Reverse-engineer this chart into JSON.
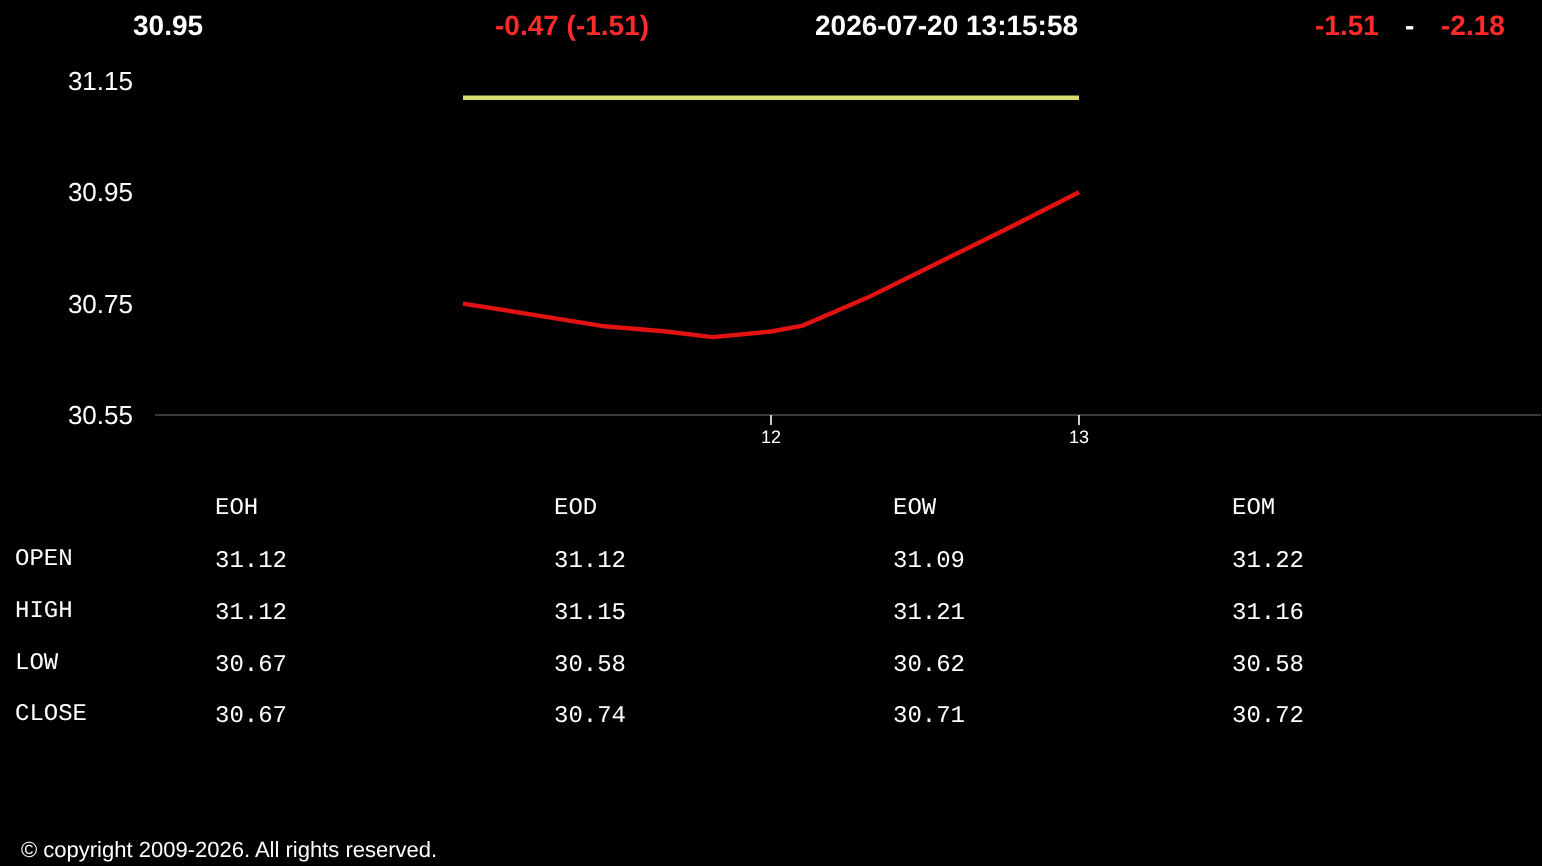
{
  "chart_data": [
    {
      "type": "line",
      "annotations": [
        "30.95",
        "-0.47 (-1.51)",
        "2026-07-20 13:15:58",
        "-1.51",
        "-",
        "-2.18"
      ],
      "series": [
        {
          "color": "#d9dc6e",
          "x": [
            11,
            13
          ],
          "values": [
            31.12,
            31.12
          ]
        },
        {
          "color": "#e31212",
          "x": [
            11,
            11.23,
            11.45,
            11.66,
            11.81,
            12,
            12.1,
            12.31,
            12.53,
            12.75,
            13
          ],
          "values": [
            30.75,
            30.73,
            30.71,
            30.7,
            30.69,
            30.7,
            30.71,
            30.76,
            30.82,
            30.88,
            30.95
          ]
        }
      ],
      "xlim": [
        10,
        14.5
      ],
      "xticks": [
        12,
        13
      ],
      "ylim": [
        30.55,
        31.15
      ],
      "yticks": [
        30.55,
        30.75,
        30.95,
        31.15
      ]
    },
    {
      "type": "other",
      "categories": [
        "EOH",
        "EOD",
        "EOW",
        "EOM"
      ],
      "series": [
        {
          "name": "OPEN",
          "values": [
            31.12,
            31.12,
            31.09,
            31.22
          ]
        },
        {
          "name": "HIGH",
          "values": [
            31.12,
            31.15,
            31.21,
            31.16
          ]
        },
        {
          "name": "LOW",
          "values": [
            30.67,
            30.58,
            30.62,
            30.58
          ]
        },
        {
          "name": "CLOSE",
          "values": [
            30.67,
            30.74,
            30.71,
            30.72
          ]
        }
      ],
      "data_labels": true,
      "annotations": [
        "© copyright 2009-2026. All rights reserved."
      ]
    }
  ]
}
